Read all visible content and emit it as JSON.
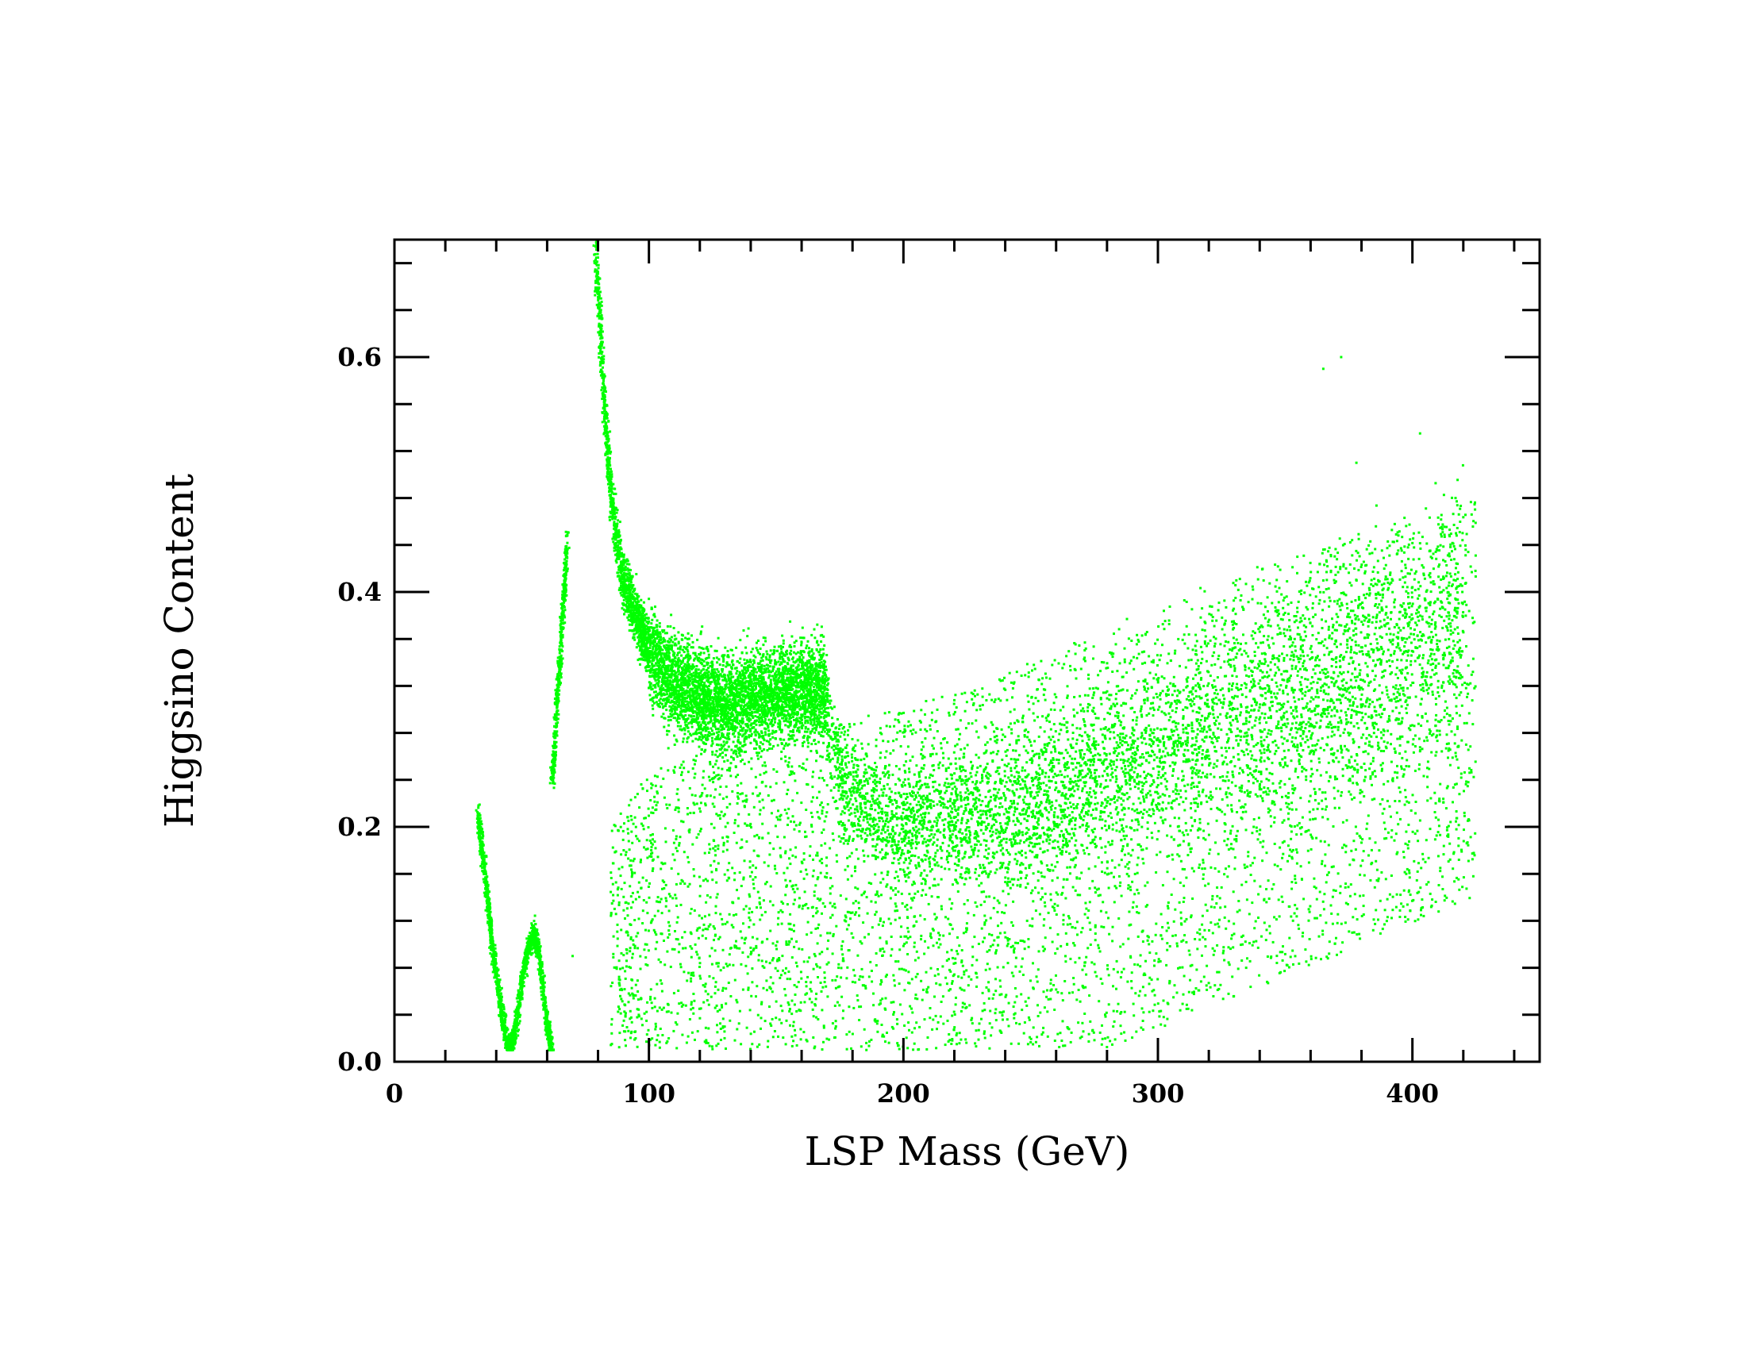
{
  "chart_data": {
    "type": "scatter",
    "title": "",
    "xlabel": "LSP Mass (GeV)",
    "ylabel": "Higgsino Content",
    "xlim": [
      0,
      450
    ],
    "ylim": [
      0,
      0.7
    ],
    "x_ticks": [
      "0",
      "100",
      "200",
      "300",
      "400"
    ],
    "y_ticks": [
      "0.0",
      "0.2",
      "0.4",
      "0.6"
    ],
    "x_minor_step": 20,
    "y_minor_step": 0.04,
    "grid": false,
    "legend": "none",
    "marker_color": "#00ff00",
    "series": [
      {
        "values_description": "scattered points; regions listed below",
        "regions": [
          {
            "kind": "curve",
            "x": [
              33,
              35,
              37,
              39,
              41,
              43,
              45,
              47,
              49,
              51,
              53,
              55,
              57,
              58,
              59,
              60,
              61,
              62
            ],
            "y": [
              0.21,
              0.17,
              0.13,
              0.09,
              0.06,
              0.03,
              0.01,
              0.02,
              0.05,
              0.08,
              0.1,
              0.11,
              0.09,
              0.07,
              0.05,
              0.03,
              0.02,
              0.01
            ]
          },
          {
            "kind": "curve",
            "x": [
              62,
              63,
              64,
              65,
              66,
              67,
              68
            ],
            "y": [
              0.24,
              0.27,
              0.31,
              0.34,
              0.38,
              0.41,
              0.45
            ]
          },
          {
            "kind": "curve",
            "x": [
              79,
              80,
              81,
              82,
              83,
              85,
              87,
              90,
              95,
              100,
              110,
              120,
              130,
              140,
              150,
              160,
              170
            ],
            "y": [
              0.69,
              0.66,
              0.62,
              0.58,
              0.54,
              0.49,
              0.45,
              0.41,
              0.38,
              0.35,
              0.32,
              0.31,
              0.305,
              0.31,
              0.315,
              0.32,
              0.315
            ]
          },
          {
            "kind": "band",
            "x": [
              170,
              175,
              180,
              190,
              200,
              210,
              220,
              230,
              240,
              250,
              260,
              280,
              300,
              320,
              340,
              360,
              380,
              400,
              420
            ],
            "center": [
              0.29,
              0.25,
              0.23,
              0.21,
              0.2,
              0.21,
              0.21,
              0.21,
              0.215,
              0.22,
              0.23,
              0.25,
              0.26,
              0.28,
              0.3,
              0.31,
              0.33,
              0.35,
              0.38
            ]
          },
          {
            "kind": "cloud",
            "x_range": [
              85,
              425
            ],
            "y_min": 0.01,
            "upper_edge_x": [
              85,
              100,
              150,
              200,
              250,
              300,
              350,
              400,
              425
            ],
            "upper_edge_y": [
              0.2,
              0.25,
              0.28,
              0.3,
              0.34,
              0.39,
              0.43,
              0.46,
              0.48
            ]
          },
          {
            "kind": "outliers",
            "x": [
              365,
              372,
              378,
              403,
              70
            ],
            "y": [
              0.59,
              0.6,
              0.51,
              0.535,
              0.09
            ]
          }
        ]
      }
    ]
  }
}
